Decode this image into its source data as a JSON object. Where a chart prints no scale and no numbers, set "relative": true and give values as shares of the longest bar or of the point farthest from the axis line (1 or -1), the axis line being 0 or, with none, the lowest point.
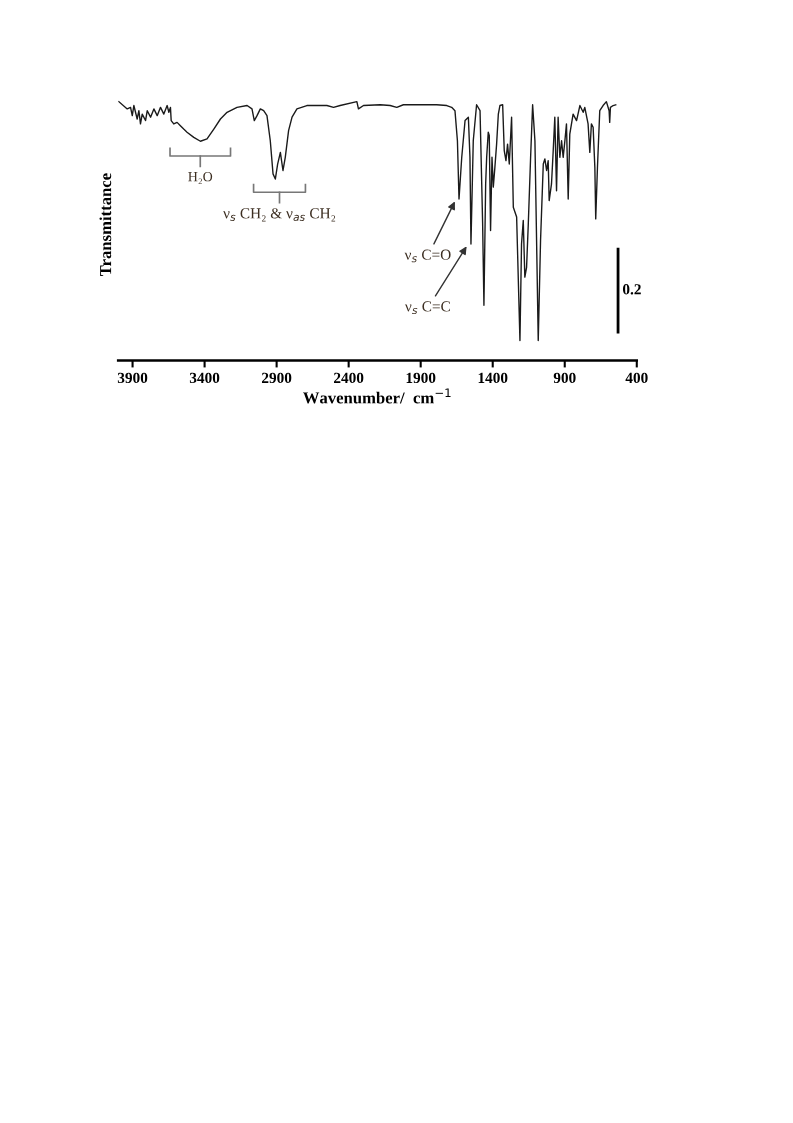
{
  "chart_data": {
    "type": "line",
    "relative": true,
    "xlabel": "Wavenumber/  cm$^{−1}$",
    "ylabel": "Transmittance",
    "xlim": [
      4000,
      400
    ],
    "xticks": [
      3900,
      3400,
      2900,
      2400,
      1900,
      1400,
      900,
      400
    ],
    "grid": false,
    "legend": false,
    "marker": "none",
    "line_style": "solid",
    "series": [
      {
        "color": "#1a1a1a",
        "x": [
          3995,
          3937,
          3914,
          3902,
          3891,
          3868,
          3856,
          3845,
          3833,
          3810,
          3798,
          3775,
          3752,
          3729,
          3706,
          3683,
          3660,
          3648,
          3637,
          3632,
          3614,
          3591,
          3568,
          3545,
          3522,
          3475,
          3429,
          3383,
          3336,
          3290,
          3244,
          3175,
          3105,
          3071,
          3055,
          3036,
          3013,
          2990,
          2967,
          2944,
          2925,
          2909,
          2893,
          2874,
          2856,
          2840,
          2817,
          2793,
          2759,
          2690,
          2551,
          2505,
          2459,
          2343,
          2332,
          2297,
          2181,
          2112,
          2066,
          2020,
          1789,
          1719,
          1685,
          1662,
          1645,
          1634,
          1615,
          1592,
          1569,
          1558,
          1551,
          1535,
          1512,
          1488,
          1470,
          1461,
          1449,
          1442,
          1431,
          1424,
          1415,
          1405,
          1396,
          1385,
          1373,
          1361,
          1350,
          1331,
          1320,
          1308,
          1297,
          1285,
          1269,
          1257,
          1234,
          1211,
          1200,
          1188,
          1177,
          1165,
          1153,
          1137,
          1123,
          1107,
          1084,
          1068,
          1049,
          1038,
          1026,
          1015,
          1008,
          992,
          980,
          969,
          957,
          946,
          934,
          922,
          911,
          899,
          888,
          876,
          865,
          842,
          818,
          795,
          772,
          761,
          738,
          726,
          715,
          703,
          691,
          685,
          673,
          657,
          634,
          611,
          592,
          588,
          583,
          564,
          546
        ],
        "values": [
          1,
          0.972,
          0.978,
          0.946,
          0.985,
          0.933,
          0.965,
          0.914,
          0.952,
          0.927,
          0.965,
          0.94,
          0.972,
          0.946,
          0.978,
          0.952,
          0.985,
          0.959,
          0.978,
          0.927,
          0.914,
          0.92,
          0.907,
          0.894,
          0.882,
          0.862,
          0.847,
          0.856,
          0.894,
          0.933,
          0.959,
          0.978,
          0.985,
          0.972,
          0.927,
          0.946,
          0.972,
          0.965,
          0.946,
          0.849,
          0.721,
          0.701,
          0.759,
          0.804,
          0.734,
          0.785,
          0.888,
          0.94,
          0.972,
          0.985,
          0.985,
          0.978,
          0.985,
          1,
          0.972,
          0.985,
          0.988,
          0.985,
          0.978,
          0.988,
          0.988,
          0.985,
          0.978,
          0.965,
          0.849,
          0.624,
          0.785,
          0.927,
          0.94,
          0.785,
          0.45,
          0.849,
          0.988,
          0.965,
          0.528,
          0.213,
          0.682,
          0.785,
          0.882,
          0.869,
          0.502,
          0.785,
          0.67,
          0.746,
          0.836,
          0.952,
          0.985,
          0.988,
          0.811,
          0.772,
          0.836,
          0.759,
          0.94,
          0.592,
          0.554,
          0.077,
          0.45,
          0.541,
          0.322,
          0.36,
          0.528,
          0.785,
          0.988,
          0.849,
          0.077,
          0.463,
          0.759,
          0.779,
          0.734,
          0.772,
          0.618,
          0.682,
          0.811,
          0.94,
          0.656,
          0.94,
          0.785,
          0.849,
          0.785,
          0.849,
          0.914,
          0.624,
          0.875,
          0.952,
          0.927,
          0.985,
          0.959,
          0.978,
          0.914,
          0.804,
          0.914,
          0.901,
          0.746,
          0.547,
          0.746,
          0.965,
          0.985,
          1,
          0.965,
          0.92,
          0.978,
          0.985,
          0.988
        ]
      }
    ],
    "annotations": [
      "H₂O",
      "ν$_{s}$ CH₂ & ν$_{as}$ CH₂",
      {
        "text": "ν$_{s}$ C=O",
        "x": 1634,
        "y": 0.624
      },
      {
        "text": "ν$_{s}$ C=C",
        "x": 1551,
        "y": 0.45
      },
      "0.2"
    ]
  }
}
